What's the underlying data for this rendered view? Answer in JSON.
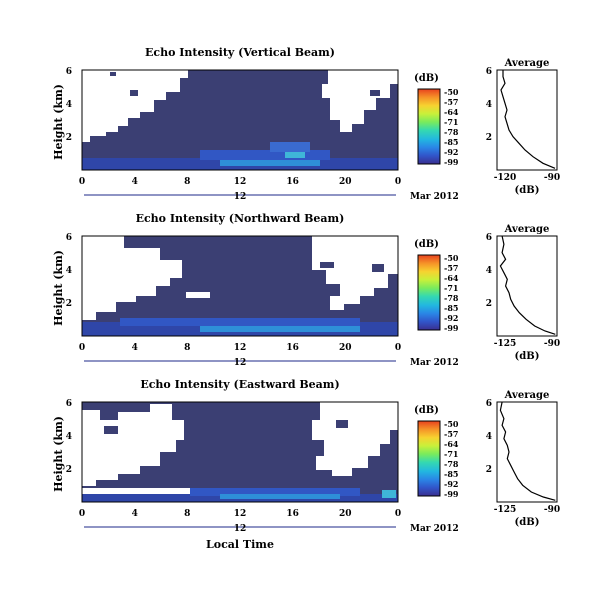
{
  "colors": {
    "background_map": "#3b3f73",
    "no_data": "#ffffff",
    "profile_line": "#000000",
    "colorbar": [
      "#3a2f8f",
      "#3155c9",
      "#2a86e6",
      "#22b7e0",
      "#35d9b0",
      "#7aeb5c",
      "#c9f03a",
      "#f7d230",
      "#f59228",
      "#e8421e"
    ]
  },
  "shared": {
    "x_ticks": [
      "0",
      "4",
      "8",
      "12",
      "16",
      "20",
      "0"
    ],
    "day_label": "12",
    "date_label": "Mar 2012",
    "ylabel": "Height (km)",
    "y_ticks": [
      "6",
      "4",
      "2"
    ],
    "xlabel_bottom": "Local Time",
    "colorbar_unit": "(dB)",
    "colorbar_ticks": [
      "-50",
      "-57",
      "-64",
      "-71",
      "-78",
      "-85",
      "-92",
      "-99"
    ],
    "profile_title": "Average",
    "profile_xlabel": "(dB)",
    "profile_y_ticks": [
      "6",
      "4",
      "2"
    ]
  },
  "chart_data": [
    {
      "type": "heatmap",
      "title": "Echo Intensity (Vertical Beam)",
      "xlabel": "",
      "ylabel": "Height (km)",
      "x_ticks": [
        "0",
        "4",
        "8",
        "12",
        "16",
        "20",
        "0"
      ],
      "y_ticks": [
        "6",
        "4",
        "2"
      ],
      "colorbar_range_db": [
        -99,
        -50
      ],
      "date_label": "Mar 2012",
      "profile": {
        "title": "Average",
        "xlabel": "(dB)",
        "x_ticks": [
          "-120",
          "-90"
        ],
        "xlim": [
          -120,
          -90
        ],
        "ylim": [
          0,
          6
        ],
        "points": [
          [
            -117,
            6.0
          ],
          [
            -117,
            5.6
          ],
          [
            -116,
            5.2
          ],
          [
            -118,
            4.8
          ],
          [
            -117,
            4.4
          ],
          [
            -116,
            4.0
          ],
          [
            -115,
            3.6
          ],
          [
            -116,
            3.2
          ],
          [
            -115,
            2.8
          ],
          [
            -114,
            2.4
          ],
          [
            -112,
            2.0
          ],
          [
            -109,
            1.6
          ],
          [
            -106,
            1.2
          ],
          [
            -102,
            0.8
          ],
          [
            -97,
            0.4
          ],
          [
            -91,
            0.1
          ]
        ]
      }
    },
    {
      "type": "heatmap",
      "title": "Echo Intensity (Northward Beam)",
      "xlabel": "",
      "ylabel": "Height (km)",
      "x_ticks": [
        "0",
        "4",
        "8",
        "12",
        "16",
        "20",
        "0"
      ],
      "y_ticks": [
        "6",
        "4",
        "2"
      ],
      "colorbar_range_db": [
        -99,
        -50
      ],
      "date_label": "Mar 2012",
      "profile": {
        "title": "Average",
        "xlabel": "(dB)",
        "x_ticks": [
          "-125",
          "-90"
        ],
        "xlim": [
          -125,
          -90
        ],
        "ylim": [
          0,
          6
        ],
        "points": [
          [
            -122,
            6.0
          ],
          [
            -121,
            5.5
          ],
          [
            -122,
            5.0
          ],
          [
            -120,
            4.6
          ],
          [
            -123,
            4.2
          ],
          [
            -121,
            3.8
          ],
          [
            -119,
            3.4
          ],
          [
            -120,
            3.0
          ],
          [
            -118,
            2.6
          ],
          [
            -117,
            2.2
          ],
          [
            -115,
            1.8
          ],
          [
            -112,
            1.4
          ],
          [
            -108,
            1.0
          ],
          [
            -103,
            0.6
          ],
          [
            -97,
            0.3
          ],
          [
            -91,
            0.1
          ]
        ]
      }
    },
    {
      "type": "heatmap",
      "title": "Echo Intensity (Eastward Beam)",
      "xlabel": "Local Time",
      "ylabel": "Height (km)",
      "x_ticks": [
        "0",
        "4",
        "8",
        "12",
        "16",
        "20",
        "0"
      ],
      "y_ticks": [
        "6",
        "4",
        "2"
      ],
      "colorbar_range_db": [
        -99,
        -50
      ],
      "date_label": "Mar 2012",
      "profile": {
        "title": "Average",
        "xlabel": "(dB)",
        "x_ticks": [
          "-125",
          "-90"
        ],
        "xlim": [
          -125,
          -90
        ],
        "ylim": [
          0,
          6
        ],
        "points": [
          [
            -122,
            6.0
          ],
          [
            -123,
            5.5
          ],
          [
            -121,
            5.0
          ],
          [
            -122,
            4.6
          ],
          [
            -120,
            4.2
          ],
          [
            -121,
            3.8
          ],
          [
            -119,
            3.4
          ],
          [
            -118,
            3.0
          ],
          [
            -119,
            2.6
          ],
          [
            -117,
            2.2
          ],
          [
            -115,
            1.8
          ],
          [
            -113,
            1.4
          ],
          [
            -110,
            1.0
          ],
          [
            -105,
            0.6
          ],
          [
            -98,
            0.3
          ],
          [
            -91,
            0.1
          ]
        ]
      }
    }
  ]
}
